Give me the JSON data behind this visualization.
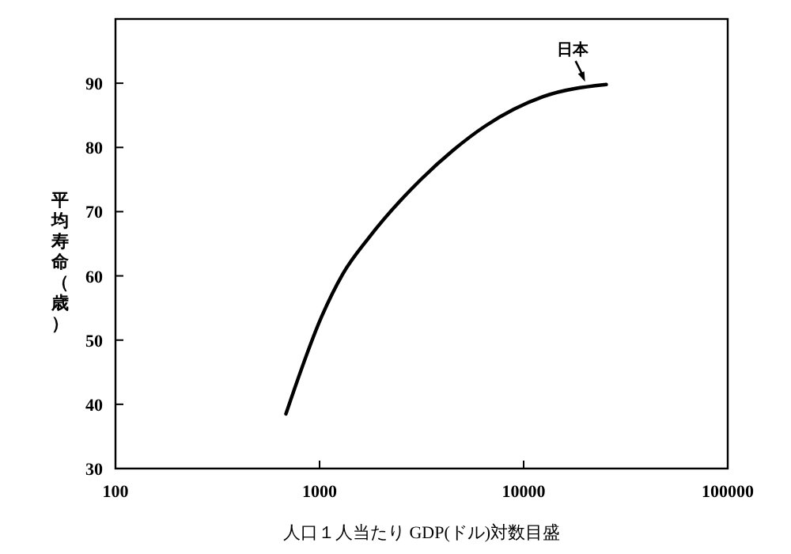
{
  "chart_data": {
    "type": "line",
    "xlabel": "人口１人当たり GDP(ドル)対数目盛",
    "ylabel": "平均寿命（歳）",
    "log": "x",
    "x": [
      684,
      1025,
      1300,
      1750,
      3160,
      4530,
      6460,
      12440,
      25400
    ],
    "series": [
      {
        "color": "#000000",
        "values": [
          38.5,
          53.7,
          60.3,
          66,
          75.1,
          79.6,
          83.3,
          87.9,
          89.8
        ]
      }
    ],
    "xlim": [
      100,
      100000
    ],
    "xticks": [
      100,
      1000,
      10000,
      100000
    ],
    "ylim": [
      30,
      100
    ],
    "yticks": [
      30,
      40,
      50,
      60,
      70,
      80,
      90
    ],
    "annotations": [
      {
        "text": "日本",
        "x": 20000,
        "y": 90
      }
    ],
    "grid": false,
    "marker": "none",
    "line_style": "solid"
  }
}
